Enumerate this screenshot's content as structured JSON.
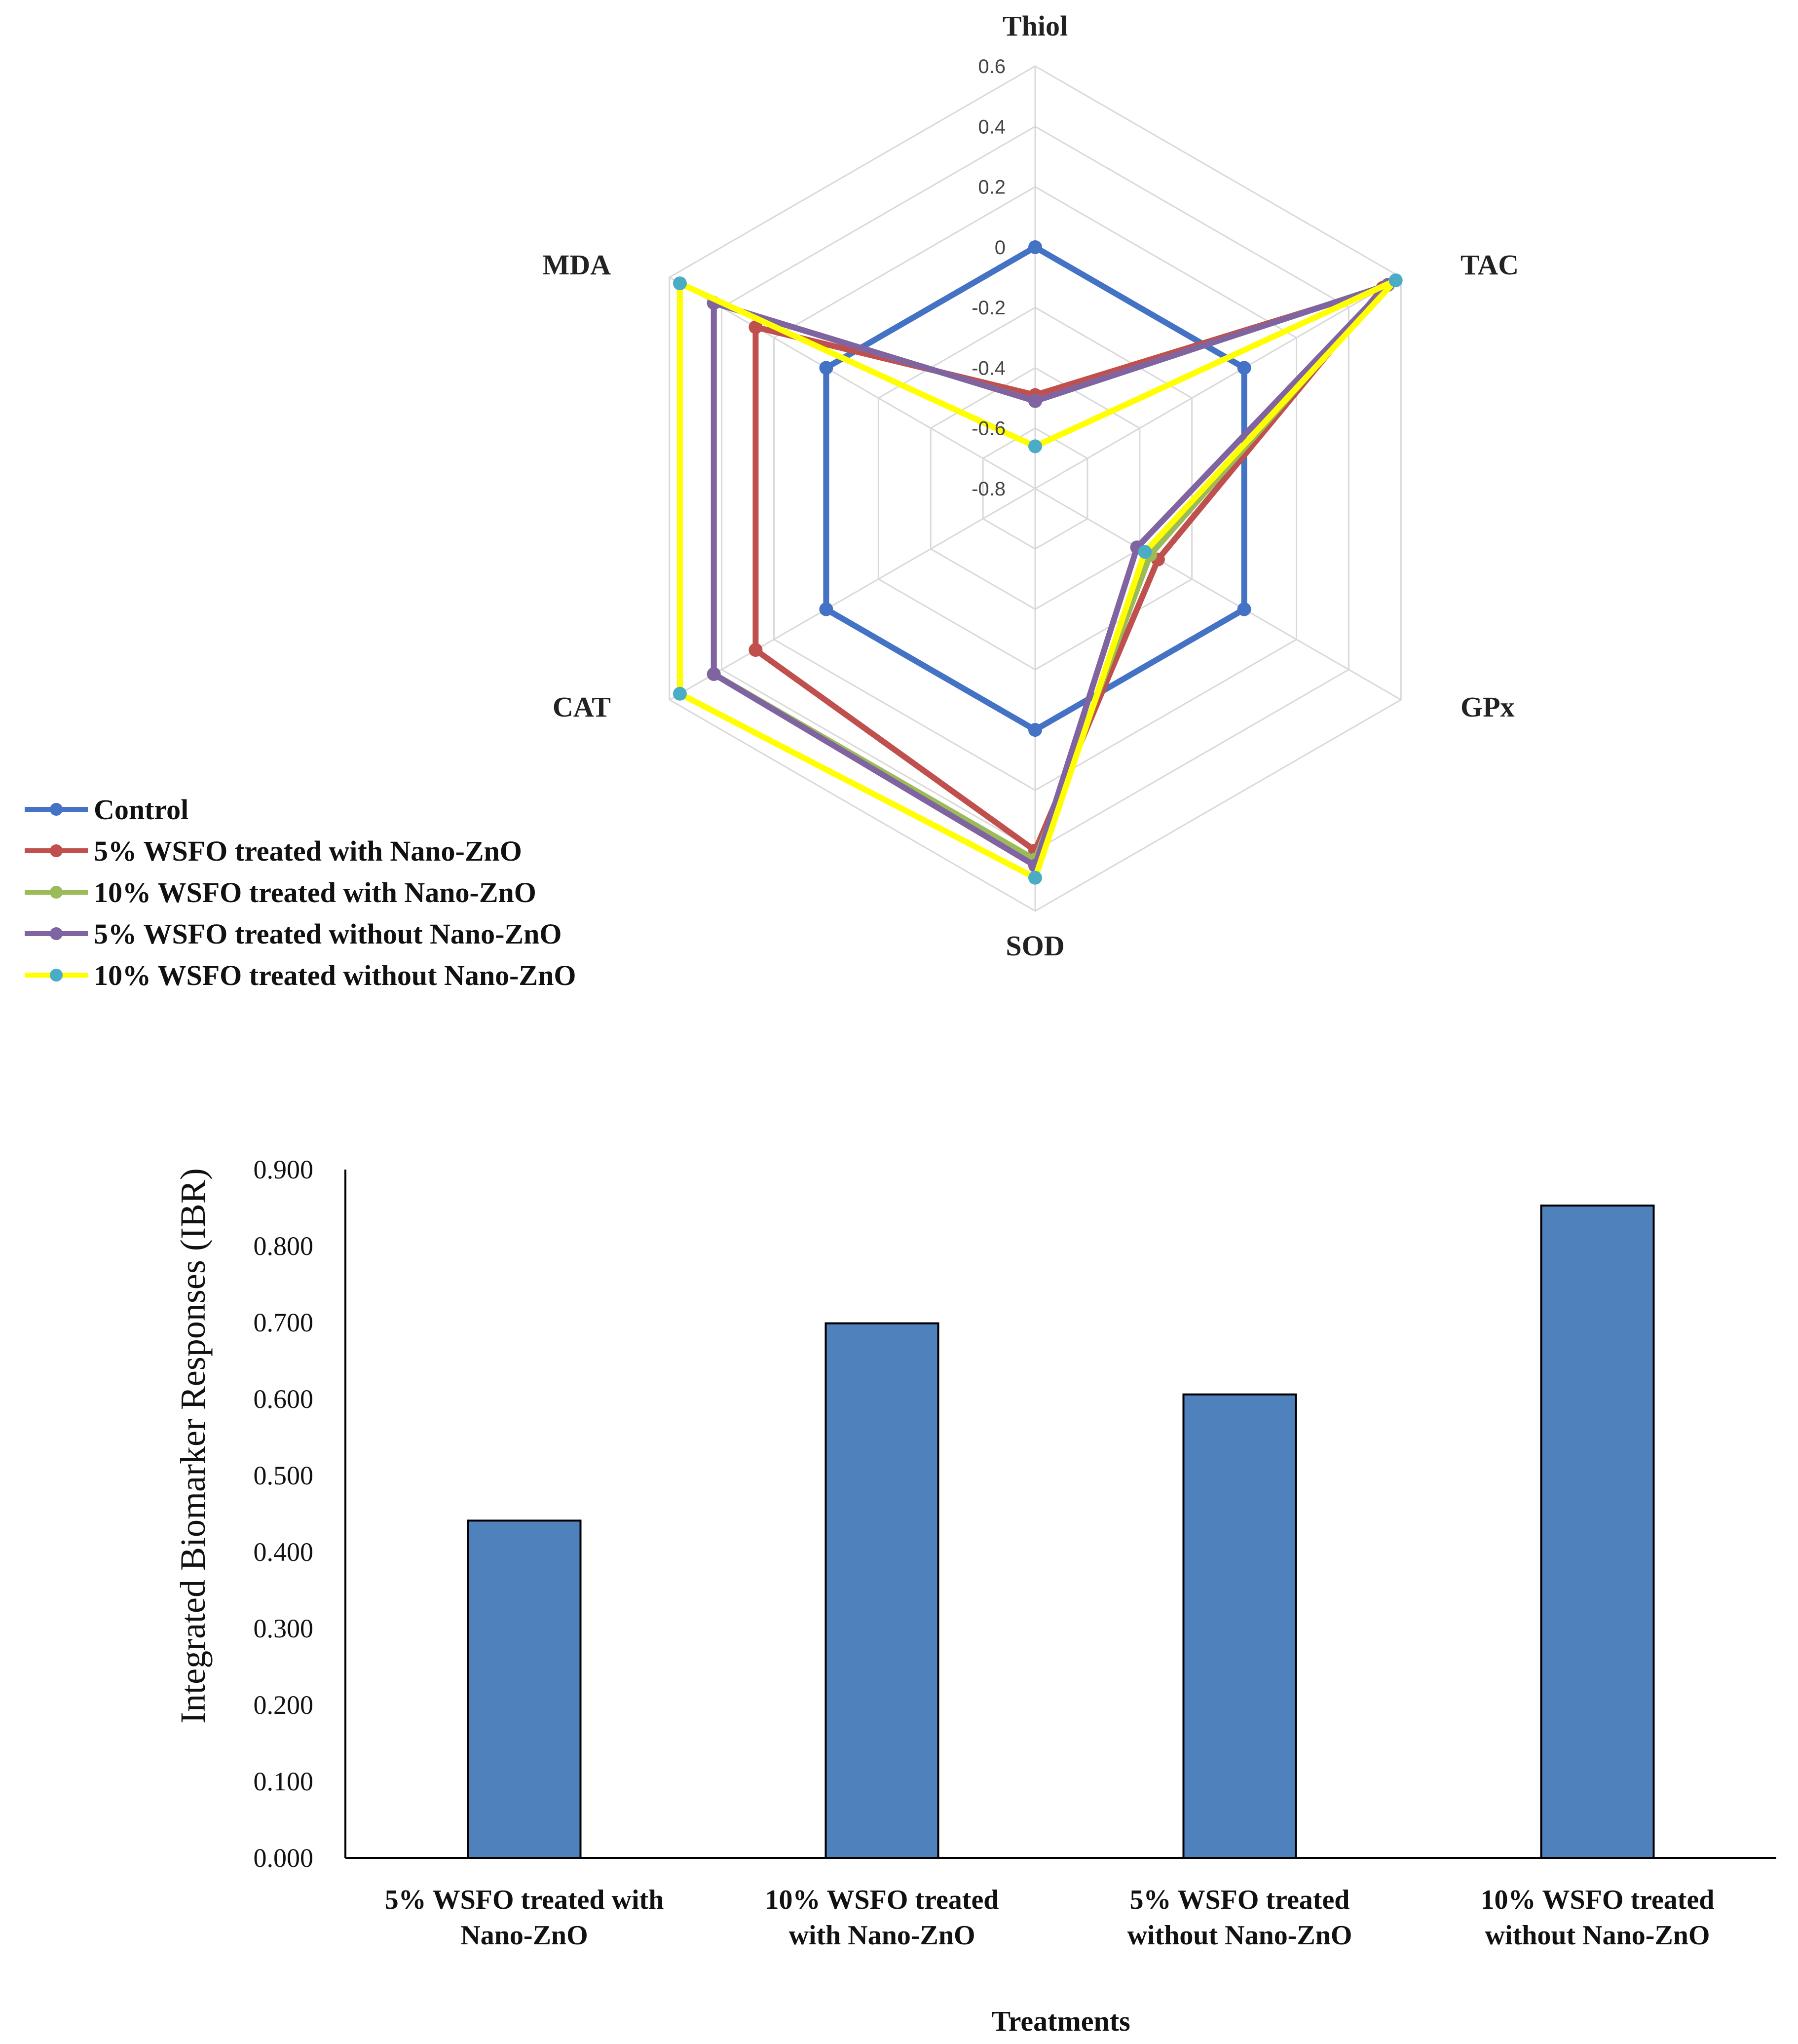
{
  "chart_data": [
    {
      "type": "radar",
      "title": "",
      "axes": [
        "Thiol",
        "TAC",
        "GPx",
        "SOD",
        "CAT",
        "MDA"
      ],
      "rlim": [
        -0.8,
        0.6
      ],
      "ticks": [
        "0.6",
        "0.4",
        "0.2",
        "0",
        "-0.2",
        "-0.4",
        "-0.6",
        "-0.8"
      ],
      "tick_values": [
        0.6,
        0.4,
        0.2,
        0,
        -0.2,
        -0.4,
        -0.6,
        -0.8
      ],
      "legend_position": "bottom-left",
      "series": [
        {
          "name": "Control",
          "color": "#4472C4",
          "values": [
            0,
            0,
            0,
            0,
            0,
            0
          ]
        },
        {
          "name": "5% WSFO treated with Nano-ZnO",
          "color": "#C0504D",
          "values": [
            -0.49,
            0.53,
            -0.33,
            0.4,
            0.27,
            0.27
          ]
        },
        {
          "name": "10% WSFO treated with Nano-ZnO",
          "color": "#9BBB59",
          "values": [
            -0.51,
            0.55,
            -0.36,
            0.43,
            0.43,
            0.43
          ]
        },
        {
          "name": "5% WSFO treated without Nano-ZnO",
          "color": "#8064A2",
          "values": [
            -0.51,
            0.55,
            -0.41,
            0.45,
            0.43,
            0.43
          ]
        },
        {
          "name": "10% WSFO treated without Nano-ZnO",
          "color": "#FFFF00",
          "marker": "#4BACC6",
          "values": [
            -0.66,
            0.58,
            -0.38,
            0.49,
            0.56,
            0.56
          ]
        }
      ]
    },
    {
      "type": "bar",
      "title": "",
      "categories": [
        "5% WSFO treated with Nano-ZnO",
        "10% WSFO treated with Nano-ZnO",
        "5% WSFO treated without Nano-ZnO",
        "10% WSFO treated without Nano-ZnO"
      ],
      "category_lines": [
        [
          "5% WSFO treated with",
          "Nano-ZnO"
        ],
        [
          "10% WSFO treated",
          "with Nano-ZnO"
        ],
        [
          "5% WSFO treated",
          "without Nano-ZnO"
        ],
        [
          "10% WSFO treated",
          "without Nano-ZnO"
        ]
      ],
      "values": [
        0.441,
        0.699,
        0.606,
        0.853
      ],
      "color": "#4F81BD",
      "xlabel": "Treatments",
      "ylabel": "Integrated Biomarker Responses (IBR)",
      "ylim": [
        0,
        0.9
      ],
      "yticks": [
        "0.000",
        "0.100",
        "0.200",
        "0.300",
        "0.400",
        "0.500",
        "0.600",
        "0.700",
        "0.800",
        "0.900"
      ],
      "ytick_values": [
        0,
        0.1,
        0.2,
        0.3,
        0.4,
        0.5,
        0.6,
        0.7,
        0.8,
        0.9
      ]
    }
  ]
}
